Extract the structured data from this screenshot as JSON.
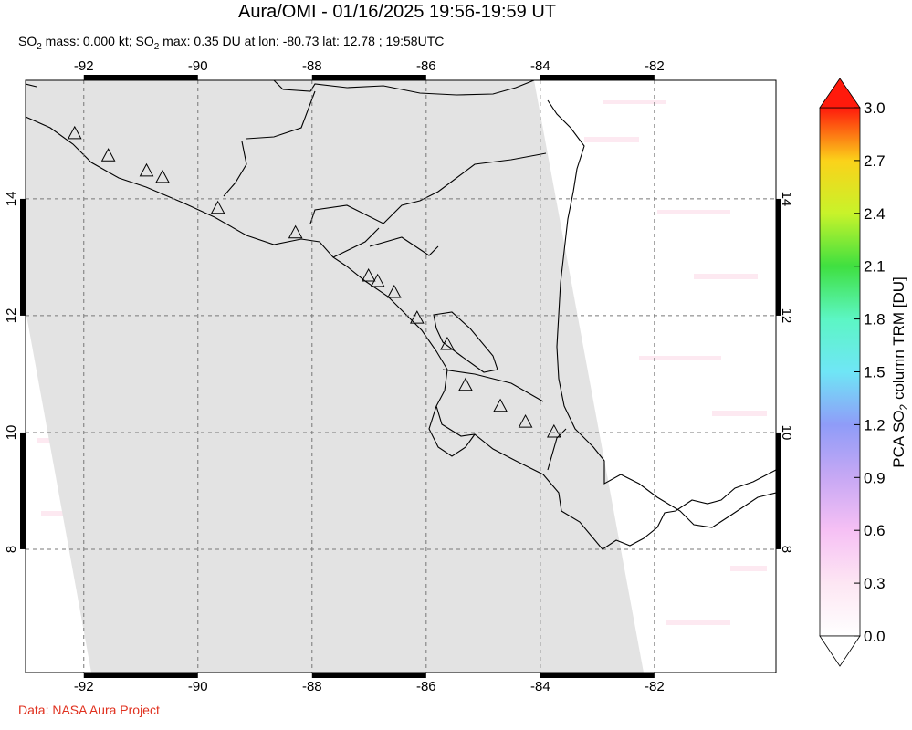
{
  "title": "Aura/OMI - 01/16/2025 19:56-19:59 UT",
  "subtitle": [
    "SO",
    "2",
    " mass: 0.000 kt; SO",
    "2",
    " max: 0.35 DU at lon: -80.73 lat: 12.78 ; 19:58UTC"
  ],
  "footer": "Data: NASA Aura Project",
  "map": {
    "lonlim": [
      -93.02,
      -79.87
    ],
    "latlim": [
      5.89,
      16.03
    ],
    "lon_ticks": [
      -92,
      -90,
      -88,
      -86,
      -84,
      -82
    ],
    "lat_ticks": [
      8,
      10,
      12,
      14
    ],
    "grid": true,
    "volcanoes": {
      "lon": [
        -92.16,
        -91.57,
        -90.9,
        -90.62,
        -89.65,
        -88.29,
        -87.01,
        -86.85,
        -86.56,
        -86.16,
        -85.63,
        -85.31,
        -84.7,
        -84.26,
        -83.76
      ],
      "lat": [
        15.11,
        14.73,
        14.47,
        14.36,
        13.83,
        13.41,
        12.67,
        12.58,
        12.39,
        11.95,
        11.5,
        10.8,
        10.44,
        10.17,
        10.0
      ]
    }
  },
  "colorbar": {
    "label": [
      "PCA SO",
      "2",
      " column TRM [DU]"
    ],
    "lim": [
      0,
      3
    ],
    "ticks": [
      {
        "value": 0,
        "label": "0.0"
      },
      0.3,
      0.6,
      0.9,
      1.2,
      1.5,
      1.8,
      2.1,
      2.4,
      2.7,
      {
        "value": 3,
        "label": "3.0"
      }
    ]
  }
}
